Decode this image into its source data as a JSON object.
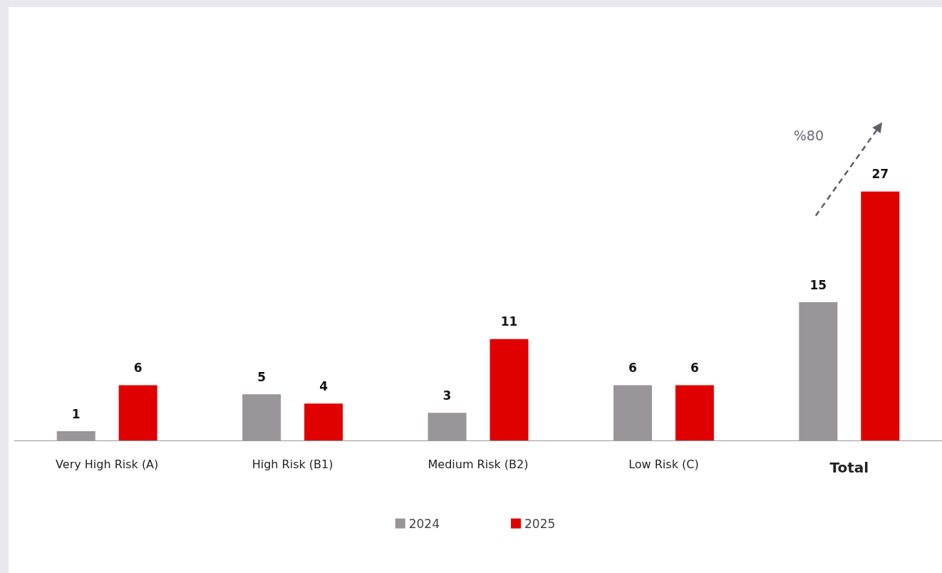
{
  "chart_data": {
    "type": "bar",
    "categories": [
      "Very High Risk (A)",
      "High Risk (B1)",
      "Medium Risk (B2)",
      "Low Risk (C)",
      "Total"
    ],
    "series": [
      {
        "name": "2024",
        "color": "#999599",
        "values": [
          1,
          5,
          3,
          6,
          15
        ]
      },
      {
        "name": "2025",
        "color": "#e00000",
        "values": [
          6,
          4,
          11,
          6,
          27
        ]
      }
    ],
    "data_labels": true,
    "tick_labels": "x",
    "legend": "bottom",
    "annotations": [
      "%80"
    ]
  }
}
